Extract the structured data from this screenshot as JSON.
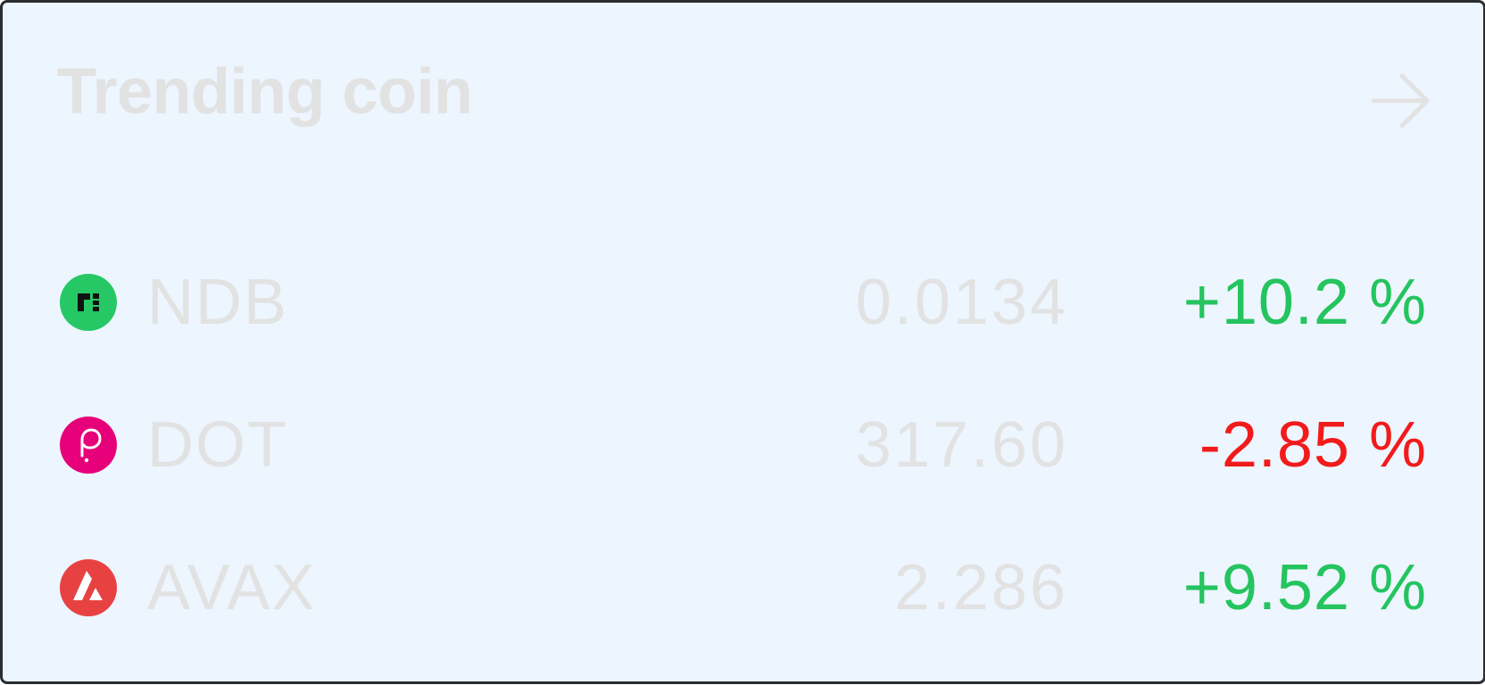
{
  "card": {
    "title": "Trending coin",
    "arrow_icon": "arrow-right-icon"
  },
  "colors": {
    "background": "#edf5ff",
    "border": "#2b2d30",
    "muted_text": "#e2e2e2",
    "positive": "#24c45e",
    "negative": "#f21b1b",
    "ndb_brand": "#26c866",
    "dot_brand": "#e6007a",
    "avax_brand": "#e84142"
  },
  "coins": [
    {
      "symbol": "NDB",
      "price": "0.0134",
      "change": "+10.2 %",
      "direction": "up",
      "icon": "ndb-logo-icon"
    },
    {
      "symbol": "DOT",
      "price": "317.60",
      "change": "-2.85 %",
      "direction": "down",
      "icon": "polkadot-logo-icon"
    },
    {
      "symbol": "AVAX",
      "price": "2.286",
      "change": "+9.52 %",
      "direction": "up",
      "icon": "avalanche-logo-icon"
    }
  ]
}
